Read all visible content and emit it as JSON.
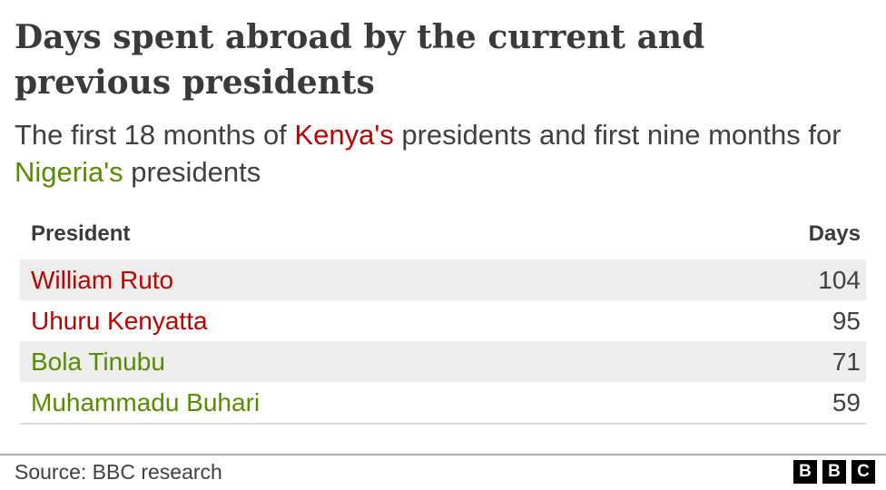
{
  "title": "Days spent abroad by the current and previous presidents",
  "subtitle": {
    "part1": "The first 18 months of ",
    "kenya": "Kenya's",
    "part2": " presidents and first nine months for ",
    "nigeria": "Nigeria's",
    "part3": " presidents"
  },
  "colors": {
    "kenya": "#b80000",
    "nigeria": "#588a00"
  },
  "chart_data": {
    "type": "table",
    "columns": [
      "President",
      "Days"
    ],
    "rows": [
      {
        "president": "William Ruto",
        "days": "104",
        "country": "Kenya"
      },
      {
        "president": "Uhuru Kenyatta",
        "days": "95",
        "country": "Kenya"
      },
      {
        "president": "Bola Tinubu",
        "days": "71",
        "country": "Nigeria"
      },
      {
        "president": "Muhammadu Buhari",
        "days": "59",
        "country": "Nigeria"
      }
    ]
  },
  "source": "Source: BBC research",
  "logo": [
    "B",
    "B",
    "C"
  ]
}
